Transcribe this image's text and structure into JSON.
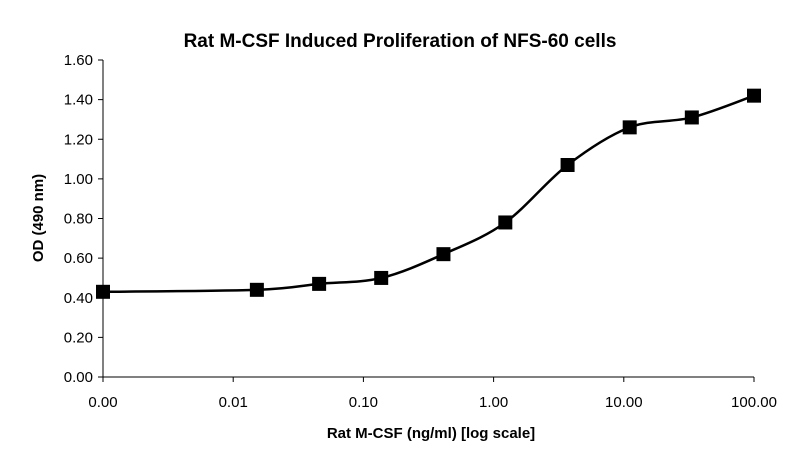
{
  "chart_data": {
    "type": "line",
    "title": "Rat M-CSF Induced Proliferation of NFS-60 cells",
    "xlabel": "Rat M-CSF (ng/ml) [log scale]",
    "ylabel": "OD (490 nm)",
    "x_scale": "log",
    "x_tick_labels": [
      "0.00",
      "0.01",
      "0.10",
      "1.00",
      "10.00",
      "100.00"
    ],
    "y_tick_labels": [
      "0.00",
      "0.20",
      "0.40",
      "0.60",
      "0.80",
      "1.00",
      "1.20",
      "1.40",
      "1.60"
    ],
    "ylim": [
      0,
      1.6
    ],
    "grid": false,
    "legend": "none",
    "series": [
      {
        "marker": "square",
        "color": "#000000",
        "smooth": true,
        "x": [
          0.001,
          0.0152,
          0.0457,
          0.137,
          0.412,
          1.23,
          3.7,
          11.1,
          33.3,
          100
        ],
        "y": [
          0.43,
          0.44,
          0.47,
          0.5,
          0.62,
          0.78,
          1.07,
          1.26,
          1.31,
          1.42
        ]
      }
    ]
  }
}
